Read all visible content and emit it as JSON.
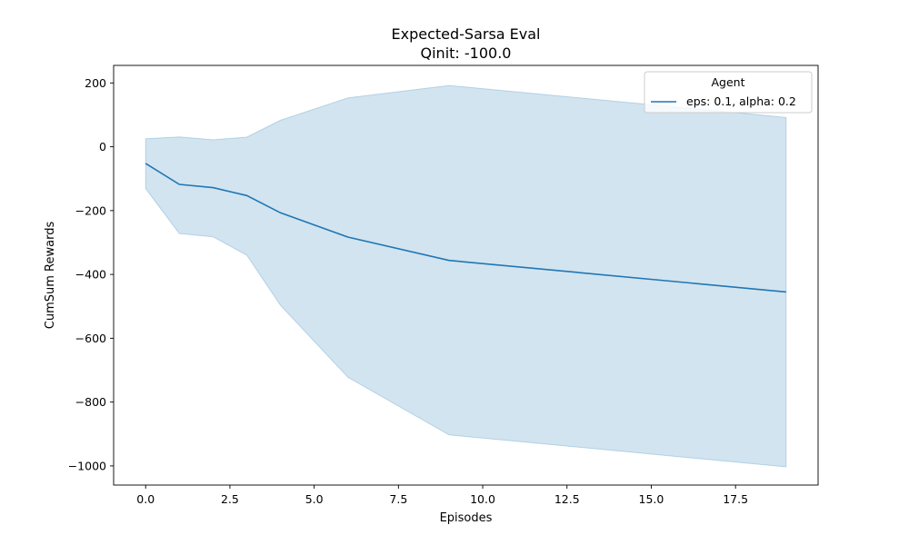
{
  "chart_data": {
    "type": "line",
    "title": "Expected-Sarsa Eval",
    "subtitle": "Qinit: -100.0",
    "xlabel": "Episodes",
    "ylabel": "CumSum Rewards",
    "xlim": [
      -0.95,
      19.95
    ],
    "ylim": [
      -1060,
      255
    ],
    "xticks": [
      0,
      2.5,
      5,
      7.5,
      10,
      12.5,
      15,
      17.5
    ],
    "xtick_labels": [
      "0.0",
      "2.5",
      "5.0",
      "7.5",
      "10.0",
      "12.5",
      "15.0",
      "17.5"
    ],
    "yticks": [
      -1000,
      -800,
      -600,
      -400,
      -200,
      0,
      200
    ],
    "ytick_labels": [
      "−1000",
      "−800",
      "−600",
      "−400",
      "−200",
      "0",
      "200"
    ],
    "grid": false,
    "legend": {
      "title": "Agent",
      "placement": "top-right"
    },
    "series": [
      {
        "name": "eps: 0.1, alpha: 0.2",
        "color": "#1f77b4",
        "band_color": "#1f77b4",
        "band_opacity": 0.2,
        "x": [
          0,
          1,
          2,
          3,
          4,
          6,
          9,
          19
        ],
        "y": [
          -52,
          -118,
          -128,
          -153,
          -207,
          -283,
          -356,
          -455
        ],
        "upper": [
          25,
          31,
          22,
          30,
          83,
          153,
          192,
          92
        ],
        "lower": [
          -131,
          -272,
          -282,
          -340,
          -497,
          -722,
          -903,
          -1003
        ]
      }
    ]
  }
}
